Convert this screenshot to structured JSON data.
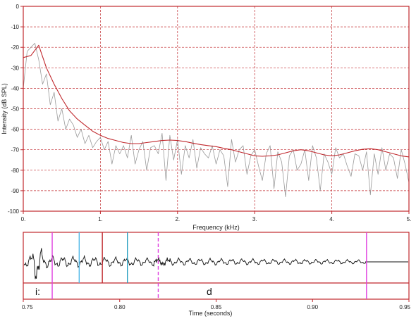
{
  "chart_data": [
    {
      "type": "line",
      "title": "",
      "xlabel": "Frequency (kHz)",
      "ylabel": "Intensity (dB SPL)",
      "xlim": [
        0,
        5
      ],
      "ylim": [
        -100,
        0
      ],
      "x_ticks": [
        "0.",
        "1.",
        "2.",
        "3.",
        "4.",
        "5."
      ],
      "y_ticks": [
        "0",
        "-10",
        "-20",
        "-30",
        "-40",
        "-50",
        "-60",
        "-70",
        "-80",
        "-90",
        "-100"
      ],
      "grid": true,
      "colors": {
        "axes": "#c0282d",
        "grid": "#c0282d",
        "spectrum": "#9a9a9a",
        "envelope": "#c0282d"
      },
      "series": [
        {
          "key": "spectrum",
          "x": [
            0.0,
            0.05,
            0.1,
            0.15,
            0.2,
            0.25,
            0.3,
            0.35,
            0.4,
            0.45,
            0.5,
            0.55,
            0.6,
            0.65,
            0.7,
            0.75,
            0.8,
            0.85,
            0.9,
            0.95,
            1.0,
            1.05,
            1.1,
            1.15,
            1.2,
            1.25,
            1.3,
            1.35,
            1.4,
            1.45,
            1.5,
            1.55,
            1.6,
            1.65,
            1.7,
            1.75,
            1.8,
            1.85,
            1.9,
            1.95,
            2.0,
            2.05,
            2.1,
            2.15,
            2.2,
            2.25,
            2.3,
            2.35,
            2.4,
            2.45,
            2.5,
            2.55,
            2.6,
            2.65,
            2.7,
            2.75,
            2.8,
            2.85,
            2.9,
            2.95,
            3.0,
            3.05,
            3.1,
            3.15,
            3.2,
            3.25,
            3.3,
            3.35,
            3.4,
            3.45,
            3.5,
            3.55,
            3.6,
            3.65,
            3.7,
            3.75,
            3.8,
            3.85,
            3.9,
            3.95,
            4.0,
            4.05,
            4.1,
            4.15,
            4.2,
            4.25,
            4.3,
            4.35,
            4.4,
            4.45,
            4.5,
            4.55,
            4.6,
            4.65,
            4.7,
            4.75,
            4.8,
            4.85,
            4.9,
            4.95,
            5.0
          ],
          "y": [
            -40,
            -22,
            -20,
            -18,
            -26,
            -38,
            -33,
            -48,
            -42,
            -56,
            -50,
            -60,
            -55,
            -58,
            -64,
            -60,
            -67,
            -63,
            -69,
            -66,
            -64,
            -70,
            -66,
            -77,
            -68,
            -72,
            -68,
            -74,
            -63,
            -77,
            -70,
            -66,
            -80,
            -69,
            -68,
            -72,
            -62,
            -85,
            -63,
            -75,
            -65,
            -82,
            -68,
            -74,
            -65,
            -79,
            -69,
            -72,
            -74,
            -68,
            -77,
            -70,
            -73,
            -88,
            -65,
            -76,
            -70,
            -68,
            -82,
            -73,
            -70,
            -78,
            -85,
            -72,
            -68,
            -89,
            -71,
            -76,
            -93,
            -73,
            -70,
            -80,
            -77,
            -70,
            -85,
            -68,
            -74,
            -90,
            -72,
            -76,
            -82,
            -69,
            -74,
            -72,
            -78,
            -83,
            -72,
            -73,
            -80,
            -71,
            -92,
            -72,
            -82,
            -69,
            -80,
            -72,
            -74,
            -84,
            -70,
            -77,
            -86
          ]
        },
        {
          "key": "envelope",
          "x": [
            0.0,
            0.1,
            0.2,
            0.3,
            0.4,
            0.5,
            0.6,
            0.7,
            0.8,
            0.9,
            1.0,
            1.1,
            1.2,
            1.3,
            1.4,
            1.5,
            1.6,
            1.7,
            1.8,
            1.9,
            2.0,
            2.1,
            2.2,
            2.3,
            2.4,
            2.5,
            2.6,
            2.7,
            2.8,
            2.9,
            3.0,
            3.1,
            3.2,
            3.3,
            3.4,
            3.5,
            3.6,
            3.7,
            3.8,
            3.9,
            4.0,
            4.1,
            4.2,
            4.3,
            4.4,
            4.5,
            4.6,
            4.7,
            4.8,
            4.9,
            5.0
          ],
          "y": [
            -25,
            -24,
            -19,
            -30,
            -38,
            -45,
            -51,
            -55,
            -58,
            -61,
            -63,
            -64.5,
            -65.5,
            -66.5,
            -67,
            -67,
            -66.5,
            -66,
            -65.5,
            -65.3,
            -65.5,
            -66,
            -66.8,
            -67.5,
            -68,
            -68.5,
            -69.3,
            -70,
            -71,
            -72,
            -73,
            -73.2,
            -73,
            -72.5,
            -71.5,
            -70.5,
            -70,
            -70.5,
            -71.5,
            -72.5,
            -73,
            -72.5,
            -71.5,
            -70.5,
            -69.8,
            -69.5,
            -70,
            -71,
            -72,
            -73,
            -73.5
          ]
        }
      ]
    },
    {
      "type": "line",
      "title": "",
      "xlabel": "Time (seconds)",
      "ylabel": "",
      "xlim": [
        0.75,
        0.95
      ],
      "x_ticks": [
        "0.75",
        "0.80",
        "0.85",
        "0.90",
        "0.95"
      ],
      "waveform_end": 0.928,
      "segments": [
        {
          "label": "i:",
          "start": 0.75,
          "end": 0.765
        },
        {
          "label": "d",
          "start": 0.765,
          "end": 0.928
        }
      ],
      "markers": [
        {
          "t": 0.765,
          "color": "#e040e0",
          "style": "solid"
        },
        {
          "t": 0.779,
          "color": "#50b8e8",
          "style": "solid"
        },
        {
          "t": 0.791,
          "color": "#c0282d",
          "style": "solid"
        },
        {
          "t": 0.804,
          "color": "#2aa0c0",
          "style": "solid"
        },
        {
          "t": 0.82,
          "color": "#e040e0",
          "style": "dashed"
        },
        {
          "t": 0.928,
          "color": "#e040e0",
          "style": "solid"
        }
      ],
      "colors": {
        "frame": "#c0282d",
        "waveform": "#111111"
      }
    }
  ]
}
